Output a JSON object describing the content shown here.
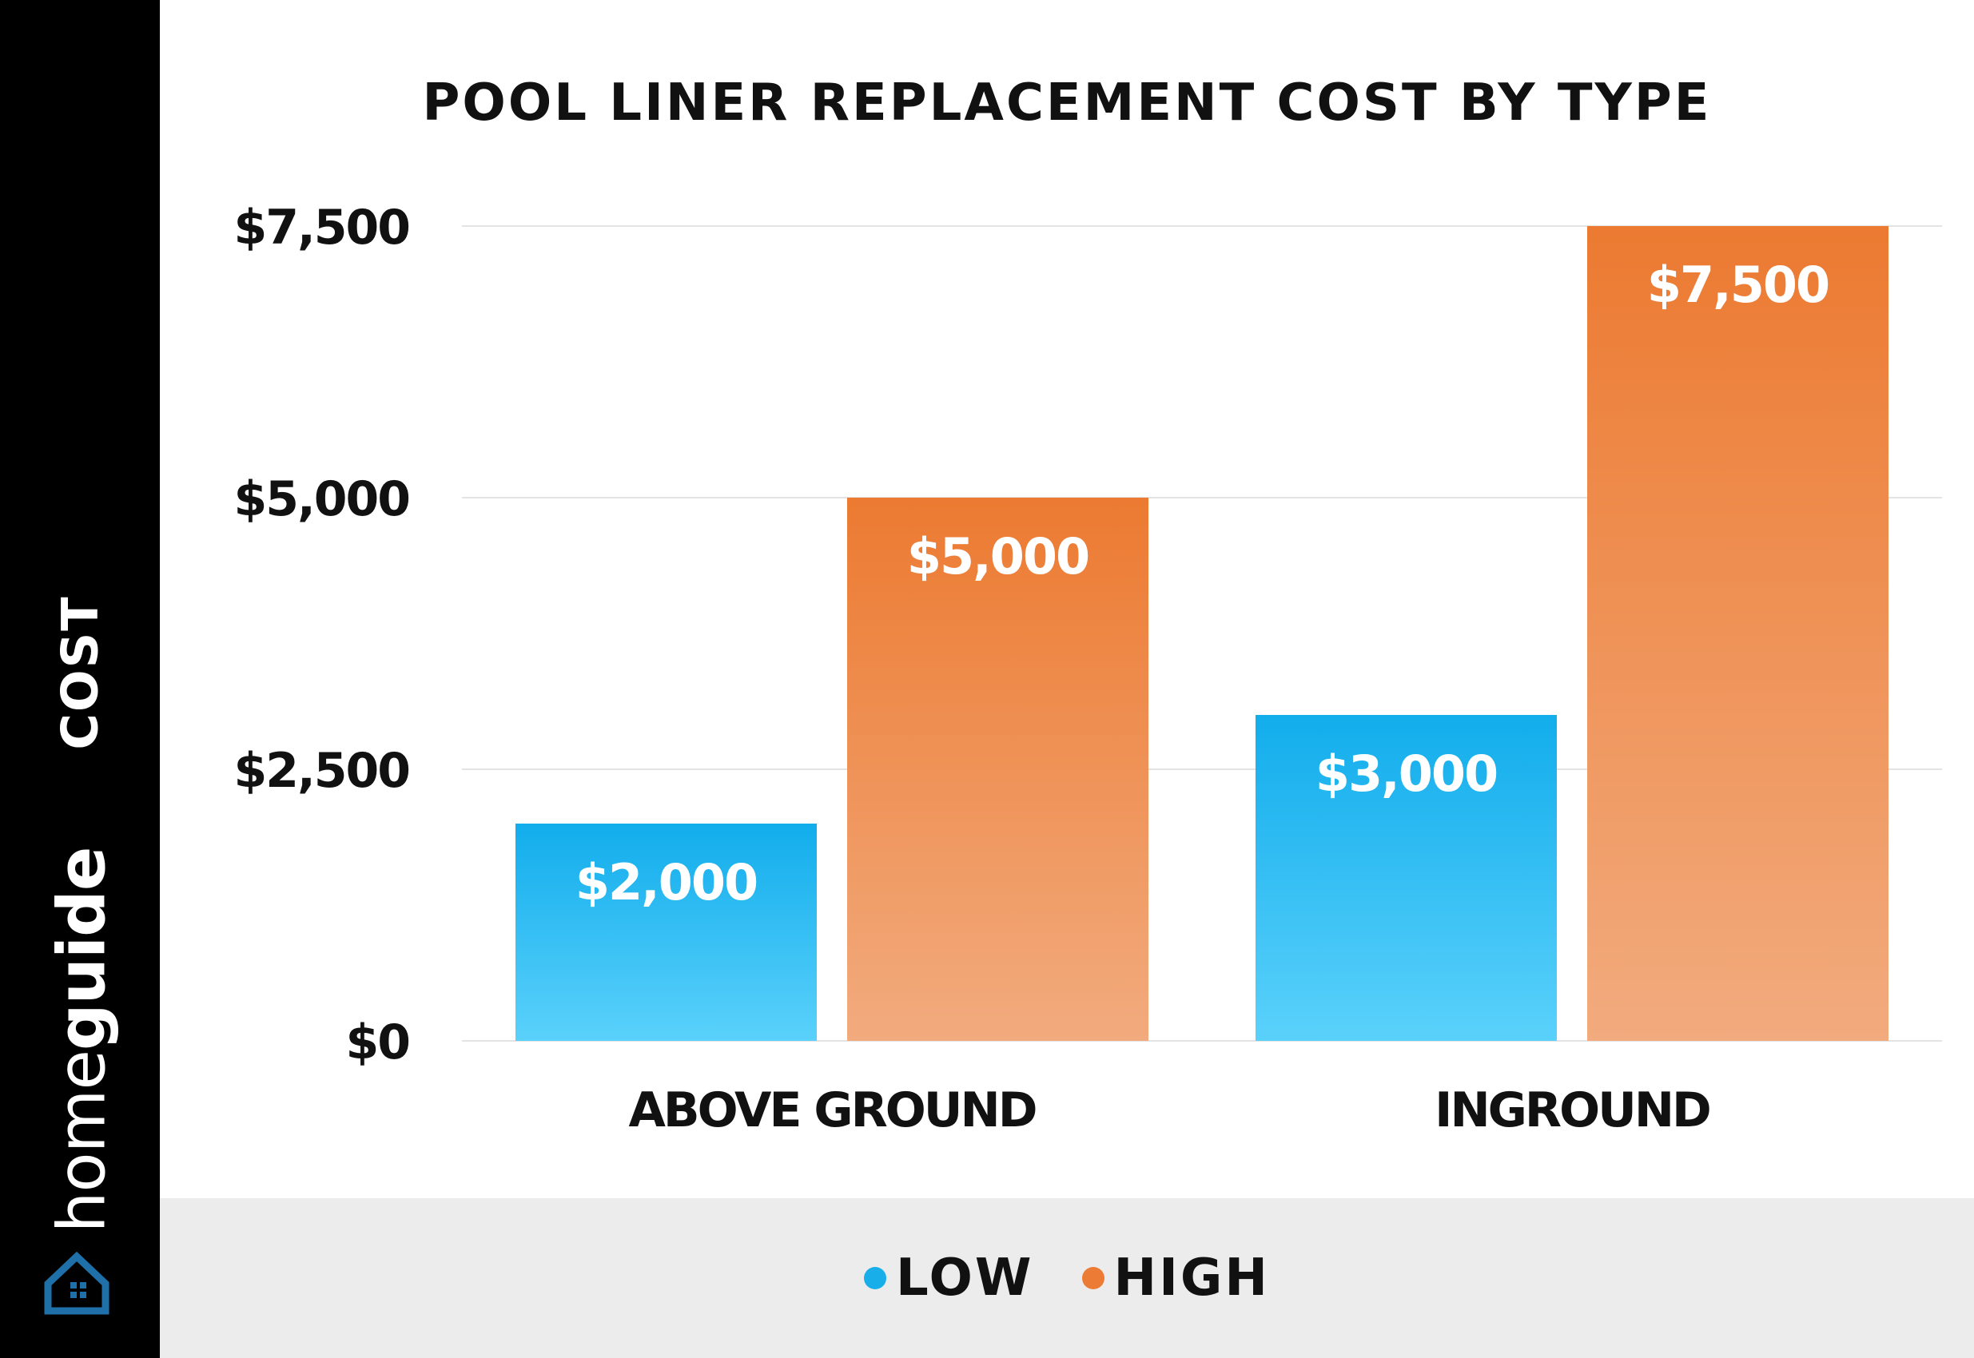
{
  "sidebar": {
    "axis_label": "COST",
    "brand": {
      "light": "home",
      "bold": "guide"
    },
    "colors": {
      "background": "#000000",
      "text": "#ffffff",
      "icon": "#1f6fa8"
    }
  },
  "legend": {
    "items": [
      {
        "label": "LOW",
        "color": "#17aee9"
      },
      {
        "label": "HIGH",
        "color": "#ec7b35"
      }
    ]
  },
  "chart_data": {
    "type": "bar",
    "title": "POOL LINER REPLACEMENT COST BY TYPE",
    "xlabel": "",
    "ylabel": "COST",
    "categories": [
      "ABOVE GROUND",
      "INGROUND"
    ],
    "series": [
      {
        "name": "LOW",
        "values": [
          2000,
          3000
        ],
        "labels": [
          "$2,000",
          "$3,000"
        ],
        "color_top": "#12adec",
        "color_bottom": "#5ad1fb"
      },
      {
        "name": "HIGH",
        "values": [
          5000,
          7500
        ],
        "labels": [
          "$5,000",
          "$7,500"
        ],
        "color_top": "#ec7a31",
        "color_bottom": "#f2ab7e"
      }
    ],
    "ylim": [
      0,
      7500
    ],
    "yticks": [
      0,
      2500,
      5000,
      7500
    ],
    "ytick_labels": [
      "$0",
      "$2,500",
      "$5,000",
      "$7,500"
    ],
    "grid": true,
    "legend_position": "bottom"
  }
}
